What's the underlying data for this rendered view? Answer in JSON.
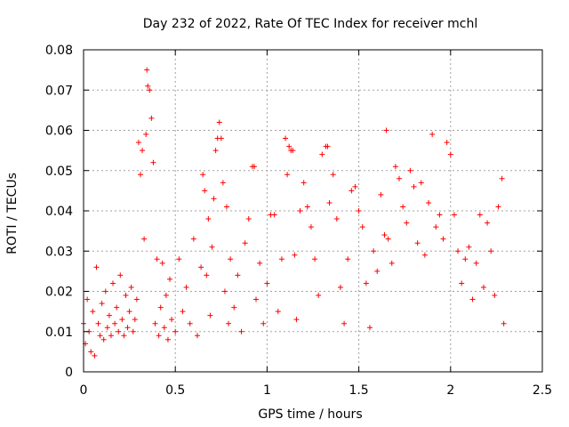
{
  "chart_data": {
    "type": "scatter",
    "title": "Day 232 of 2022, Rate Of TEC Index for receiver mchl",
    "xlabel": "GPS time / hours",
    "ylabel": "ROTI / TECUs",
    "xlim": [
      0,
      2.5
    ],
    "ylim": [
      0,
      0.08
    ],
    "x_ticks": [
      0,
      0.5,
      1,
      1.5,
      2,
      2.5
    ],
    "x_tick_labels": [
      "0",
      "0.5",
      "1",
      "1.5",
      "2",
      "2.5"
    ],
    "y_ticks": [
      0,
      0.01,
      0.02,
      0.03,
      0.04,
      0.05,
      0.06,
      0.07,
      0.08
    ],
    "y_tick_labels": [
      "0",
      "0.01",
      "0.02",
      "0.03",
      "0.04",
      "0.05",
      "0.06",
      "0.07",
      "0.08"
    ],
    "grid": true,
    "marker": "+",
    "color": "#ff0000",
    "series": [
      {
        "points": [
          [
            0.0,
            0.012
          ],
          [
            0.01,
            0.007
          ],
          [
            0.02,
            0.018
          ],
          [
            0.03,
            0.01
          ],
          [
            0.04,
            0.005
          ],
          [
            0.05,
            0.015
          ],
          [
            0.06,
            0.004
          ],
          [
            0.07,
            0.026
          ],
          [
            0.08,
            0.012
          ],
          [
            0.09,
            0.009
          ],
          [
            0.1,
            0.017
          ],
          [
            0.11,
            0.008
          ],
          [
            0.12,
            0.02
          ],
          [
            0.13,
            0.011
          ],
          [
            0.14,
            0.014
          ],
          [
            0.15,
            0.009
          ],
          [
            0.16,
            0.022
          ],
          [
            0.17,
            0.012
          ],
          [
            0.18,
            0.016
          ],
          [
            0.19,
            0.01
          ],
          [
            0.2,
            0.024
          ],
          [
            0.21,
            0.013
          ],
          [
            0.22,
            0.009
          ],
          [
            0.23,
            0.019
          ],
          [
            0.24,
            0.011
          ],
          [
            0.25,
            0.015
          ],
          [
            0.26,
            0.021
          ],
          [
            0.27,
            0.01
          ],
          [
            0.28,
            0.013
          ],
          [
            0.29,
            0.018
          ],
          [
            0.3,
            0.057
          ],
          [
            0.31,
            0.049
          ],
          [
            0.32,
            0.055
          ],
          [
            0.33,
            0.033
          ],
          [
            0.34,
            0.059
          ],
          [
            0.345,
            0.075
          ],
          [
            0.35,
            0.071
          ],
          [
            0.36,
            0.07
          ],
          [
            0.37,
            0.063
          ],
          [
            0.38,
            0.052
          ],
          [
            0.39,
            0.012
          ],
          [
            0.4,
            0.028
          ],
          [
            0.41,
            0.009
          ],
          [
            0.42,
            0.016
          ],
          [
            0.43,
            0.027
          ],
          [
            0.44,
            0.011
          ],
          [
            0.45,
            0.019
          ],
          [
            0.46,
            0.008
          ],
          [
            0.47,
            0.023
          ],
          [
            0.48,
            0.013
          ],
          [
            0.5,
            0.01
          ],
          [
            0.52,
            0.028
          ],
          [
            0.54,
            0.015
          ],
          [
            0.56,
            0.021
          ],
          [
            0.58,
            0.012
          ],
          [
            0.6,
            0.033
          ],
          [
            0.62,
            0.009
          ],
          [
            0.64,
            0.026
          ],
          [
            0.65,
            0.049
          ],
          [
            0.66,
            0.045
          ],
          [
            0.67,
            0.024
          ],
          [
            0.68,
            0.038
          ],
          [
            0.69,
            0.014
          ],
          [
            0.7,
            0.031
          ],
          [
            0.71,
            0.043
          ],
          [
            0.72,
            0.055
          ],
          [
            0.73,
            0.058
          ],
          [
            0.74,
            0.062
          ],
          [
            0.75,
            0.058
          ],
          [
            0.76,
            0.047
          ],
          [
            0.77,
            0.02
          ],
          [
            0.78,
            0.041
          ],
          [
            0.79,
            0.012
          ],
          [
            0.8,
            0.028
          ],
          [
            0.82,
            0.016
          ],
          [
            0.84,
            0.024
          ],
          [
            0.86,
            0.01
          ],
          [
            0.88,
            0.032
          ],
          [
            0.9,
            0.038
          ],
          [
            0.92,
            0.051
          ],
          [
            0.93,
            0.051
          ],
          [
            0.94,
            0.018
          ],
          [
            0.96,
            0.027
          ],
          [
            0.98,
            0.012
          ],
          [
            1.0,
            0.022
          ],
          [
            1.02,
            0.039
          ],
          [
            1.04,
            0.039
          ],
          [
            1.06,
            0.015
          ],
          [
            1.08,
            0.028
          ],
          [
            1.1,
            0.058
          ],
          [
            1.11,
            0.049
          ],
          [
            1.12,
            0.056
          ],
          [
            1.13,
            0.055
          ],
          [
            1.14,
            0.055
          ],
          [
            1.15,
            0.029
          ],
          [
            1.16,
            0.013
          ],
          [
            1.18,
            0.04
          ],
          [
            1.2,
            0.047
          ],
          [
            1.22,
            0.041
          ],
          [
            1.24,
            0.036
          ],
          [
            1.26,
            0.028
          ],
          [
            1.28,
            0.019
          ],
          [
            1.3,
            0.054
          ],
          [
            1.32,
            0.056
          ],
          [
            1.33,
            0.056
          ],
          [
            1.34,
            0.042
          ],
          [
            1.36,
            0.049
          ],
          [
            1.38,
            0.038
          ],
          [
            1.4,
            0.021
          ],
          [
            1.42,
            0.012
          ],
          [
            1.44,
            0.028
          ],
          [
            1.46,
            0.045
          ],
          [
            1.48,
            0.046
          ],
          [
            1.5,
            0.04
          ],
          [
            1.52,
            0.036
          ],
          [
            1.54,
            0.022
          ],
          [
            1.56,
            0.011
          ],
          [
            1.58,
            0.03
          ],
          [
            1.6,
            0.025
          ],
          [
            1.62,
            0.044
          ],
          [
            1.64,
            0.034
          ],
          [
            1.65,
            0.06
          ],
          [
            1.66,
            0.033
          ],
          [
            1.68,
            0.027
          ],
          [
            1.7,
            0.051
          ],
          [
            1.72,
            0.048
          ],
          [
            1.74,
            0.041
          ],
          [
            1.76,
            0.037
          ],
          [
            1.78,
            0.05
          ],
          [
            1.8,
            0.046
          ],
          [
            1.82,
            0.032
          ],
          [
            1.84,
            0.047
          ],
          [
            1.86,
            0.029
          ],
          [
            1.88,
            0.042
          ],
          [
            1.9,
            0.059
          ],
          [
            1.92,
            0.036
          ],
          [
            1.94,
            0.039
          ],
          [
            1.96,
            0.033
          ],
          [
            1.98,
            0.057
          ],
          [
            2.0,
            0.054
          ],
          [
            2.02,
            0.039
          ],
          [
            2.04,
            0.03
          ],
          [
            2.06,
            0.022
          ],
          [
            2.08,
            0.028
          ],
          [
            2.1,
            0.031
          ],
          [
            2.12,
            0.018
          ],
          [
            2.14,
            0.027
          ],
          [
            2.16,
            0.039
          ],
          [
            2.18,
            0.021
          ],
          [
            2.2,
            0.037
          ],
          [
            2.22,
            0.03
          ],
          [
            2.24,
            0.019
          ],
          [
            2.26,
            0.041
          ],
          [
            2.28,
            0.048
          ],
          [
            2.29,
            0.012
          ]
        ]
      }
    ]
  }
}
